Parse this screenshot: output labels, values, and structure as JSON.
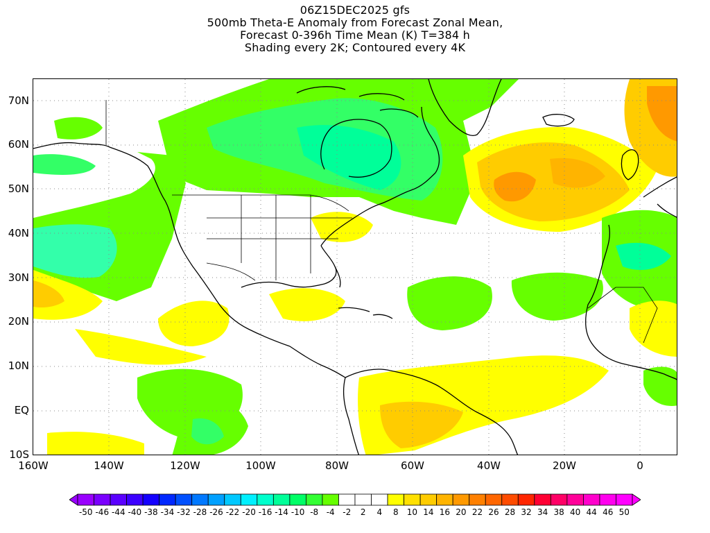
{
  "title": {
    "line1": "06Z15DEC2025 gfs",
    "line2": "500mb Theta-E Anomaly from Forecast Zonal Mean,",
    "line3": "Forecast 0-396h Time Mean (K) T=384 h",
    "line4": "Shading every 2K; Contoured every 4K"
  },
  "latitude_labels": [
    "70N",
    "60N",
    "50N",
    "40N",
    "30N",
    "20N",
    "10N",
    "EQ",
    "10S"
  ],
  "longitude_labels": [
    "160W",
    "140W",
    "120W",
    "100W",
    "80W",
    "60W",
    "40W",
    "20W",
    "0"
  ],
  "colorbar": {
    "labels": [
      "-50",
      "-46",
      "-44",
      "-40",
      "-38",
      "-34",
      "-32",
      "-28",
      "-26",
      "-22",
      "-20",
      "-16",
      "-14",
      "-10",
      "-8",
      "-4",
      "-2",
      "2",
      "4",
      "8",
      "10",
      "14",
      "16",
      "20",
      "22",
      "26",
      "28",
      "32",
      "34",
      "38",
      "40",
      "44",
      "46",
      "50"
    ],
    "colors": [
      "#9900ff",
      "#7a00ff",
      "#5a00ff",
      "#3c00ff",
      "#1400ff",
      "#0028ff",
      "#0050ff",
      "#0078ff",
      "#00a0ff",
      "#00c8ff",
      "#00f0ff",
      "#00ffcc",
      "#00ff99",
      "#00ff66",
      "#33ff33",
      "#66ff00",
      "#ffffff",
      "#ffffff",
      "#ffffff",
      "#ffff00",
      "#ffe000",
      "#ffcc00",
      "#ffb400",
      "#ff9900",
      "#ff8000",
      "#ff6600",
      "#ff4c00",
      "#ff2600",
      "#ff0033",
      "#ff0066",
      "#ff0099",
      "#ff00cc",
      "#ff00ee",
      "#ff00ff"
    ],
    "end_left_color": "#9900ff",
    "end_right_color": "#ff00ff"
  },
  "anomaly_fields": [
    {
      "region": "canada-arctic",
      "color": "#66ff00"
    },
    {
      "region": "canada-core",
      "color": "#33ff33"
    },
    {
      "region": "north-pacific-east",
      "color": "#33ff66"
    },
    {
      "region": "north-atlantic-warm",
      "color": "#ffcc00"
    },
    {
      "region": "north-atlantic-core",
      "color": "#ff9900"
    },
    {
      "region": "tropical-atlantic-green",
      "color": "#66ff00"
    },
    {
      "region": "south-america-warm",
      "color": "#ffe000"
    },
    {
      "region": "gulf-yellow",
      "color": "#ffff00"
    }
  ]
}
